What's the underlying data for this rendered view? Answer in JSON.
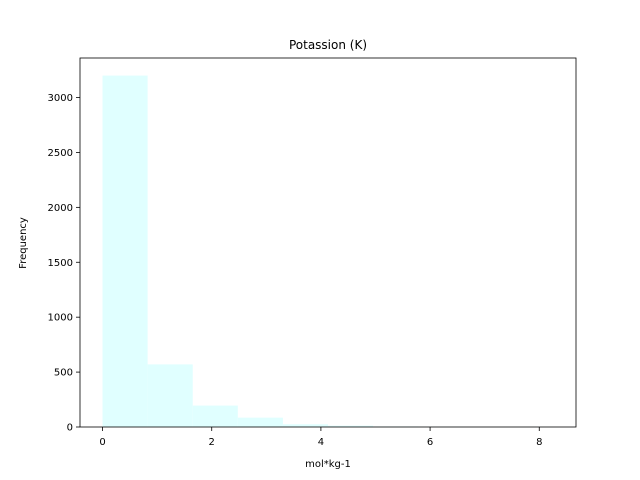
{
  "chart_data": {
    "type": "bar",
    "title": "Potassion (K)",
    "xlabel": "mol*kg-1",
    "ylabel": "Frequency",
    "bin_edges": [
      0.0,
      0.826,
      1.652,
      2.478,
      3.304,
      4.13,
      4.956,
      5.782,
      6.608,
      7.434,
      8.26
    ],
    "values": [
      3200,
      570,
      195,
      85,
      25,
      12,
      5,
      3,
      2,
      1
    ],
    "xlim": [
      -0.413,
      8.673
    ],
    "ylim": [
      0,
      3360
    ],
    "xticks": [
      0,
      2,
      4,
      6,
      8
    ],
    "yticks": [
      0,
      500,
      1000,
      1500,
      2000,
      2500,
      3000
    ],
    "bar_color": "#e0ffff",
    "grid": false,
    "legend": "none"
  }
}
